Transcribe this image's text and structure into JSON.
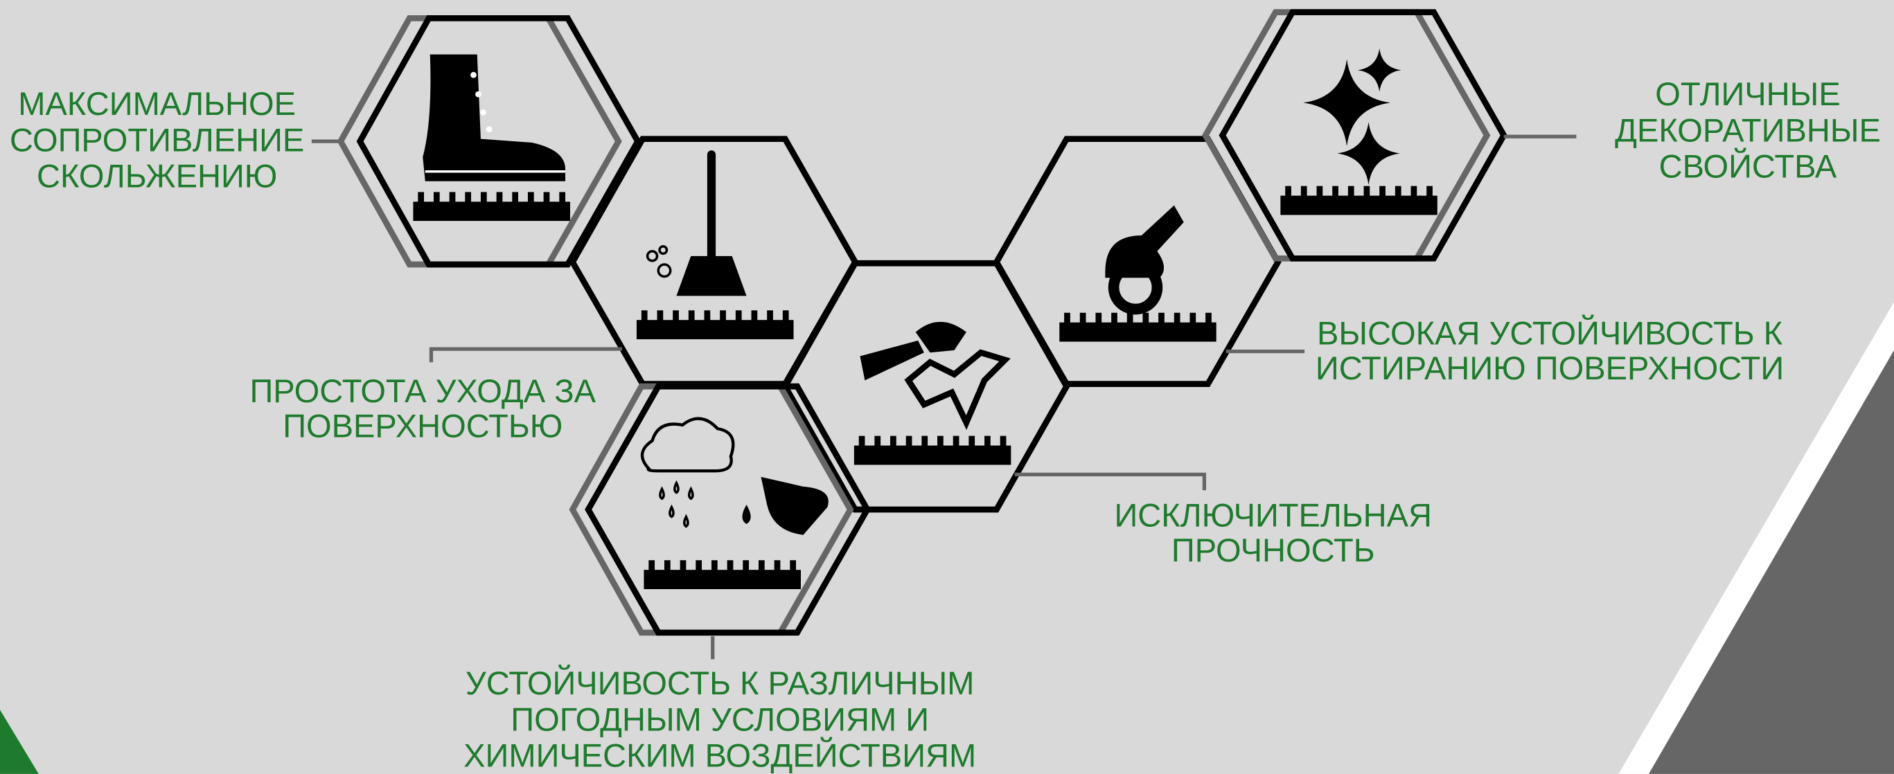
{
  "features": [
    {
      "lines": [
        "МАКСИМАЛЬНОЕ",
        "СОПРОТИВЛЕНИЕ",
        "СКОЛЬЖЕНИЮ"
      ]
    },
    {
      "lines": [
        "ПРОСТОТА УХОДА ЗА",
        "ПОВЕРХНОСТЬЮ"
      ]
    },
    {
      "lines": [
        "ИСКЛЮЧИТЕЛЬНАЯ",
        "ПРОЧНОСТЬ"
      ]
    },
    {
      "lines": [
        "ВЫСОКАЯ УСТОЙЧИВОСТЬ К",
        "ИСТИРАНИЮ ПОВЕРХНОСТИ"
      ]
    },
    {
      "lines": [
        "ОТЛИЧНЫЕ",
        "ДЕКОРАТИВНЫЕ",
        "СВОЙСТВА"
      ]
    },
    {
      "lines": [
        "УСТОЙЧИВОСТЬ К РАЗЛИЧНЫМ",
        "ПОГОДНЫМ УСЛОВИЯМ И",
        "ХИМИЧЕСКИМ ВОЗДЕЙСТВИЯМ"
      ]
    }
  ]
}
